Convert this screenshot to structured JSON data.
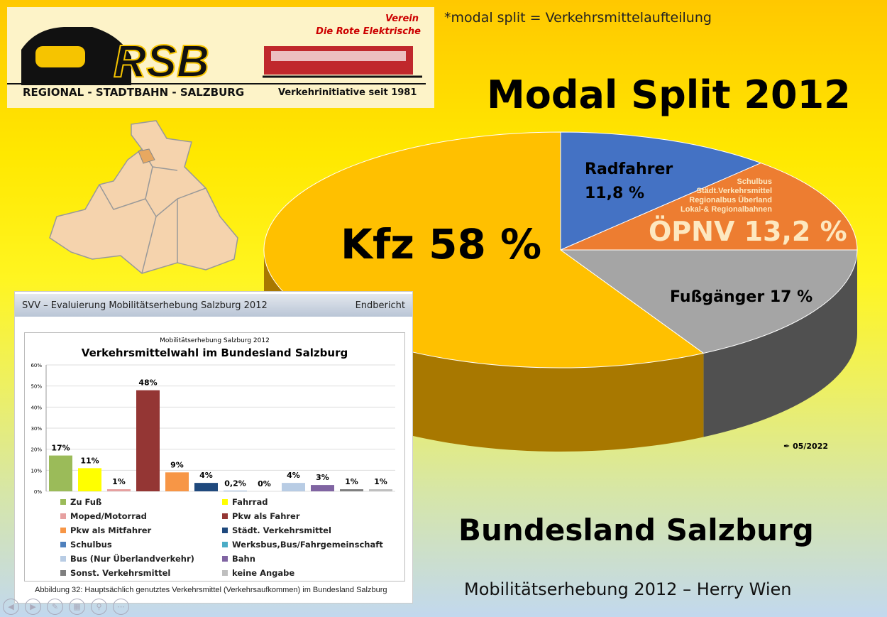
{
  "logo": {
    "brand": "RSB",
    "verein": "Verein",
    "name": "Die Rote Elektrische",
    "subtitle": "REGIONAL - STADTBAHN - SALZBURG",
    "tagline": "Verkehrinitiative seit 1981"
  },
  "note": "*modal split = Verkehrsmittelaufteilung",
  "title": "Modal Split 2012",
  "footer": {
    "region": "Bundesland Salzburg",
    "source": "Mobilitätserhebung 2012 – Herry Wien",
    "date": "05/2022"
  },
  "chart_data": [
    {
      "type": "pie",
      "title": "Modal Split 2012",
      "slices": [
        {
          "label": "Radfahrer",
          "value_label": "11,8 %",
          "value": 11.8,
          "color": "#4472c4"
        },
        {
          "label": "ÖPNV",
          "value_label": "ÖPNV 13,2 %",
          "value": 13.2,
          "color": "#ed7d31",
          "details": [
            "Schulbus",
            "Städt.Verkehrsmittel",
            "Regionalbus Überland",
            "Lokal-& Regionalbahnen"
          ]
        },
        {
          "label": "Fußgänger",
          "value_label": "Fußgänger 17 %",
          "value": 17,
          "color": "#a5a5a5"
        },
        {
          "label": "Kfz",
          "value_label": "Kfz 58 %",
          "value": 58,
          "color": "#ffc000"
        }
      ]
    },
    {
      "type": "bar",
      "supertitle": "Mobilitätserhebung Salzburg 2012",
      "title": "Verkehrsmittelwahl im Bundesland Salzburg",
      "ylim": [
        0,
        60
      ],
      "yticks": [
        "0%",
        "10%",
        "20%",
        "30%",
        "40%",
        "50%",
        "60%"
      ],
      "grid": true,
      "legend": "bottom",
      "categories": [
        "Zu Fuß",
        "Fahrrad",
        "Moped/Motorrad",
        "Pkw als Fahrer",
        "Pkw als Mitfahrer",
        "Städt. Verkehrsmittel",
        "Schulbus",
        "Werksbus,Bus/Fahrgemeinschaft",
        "Bus (Nur Überlandverkehr)",
        "Bahn",
        "Sonst. Verkehrsmittel",
        "keine Angabe"
      ],
      "values": [
        17,
        11,
        1,
        48,
        9,
        4,
        0.2,
        0,
        4,
        3,
        1,
        1
      ],
      "data_labels": [
        "17%",
        "11%",
        "1%",
        "48%",
        "9%",
        "4%",
        "0,2%",
        "0%",
        "4%",
        "3%",
        "1%",
        "1%"
      ],
      "colors": [
        "#9bbb59",
        "#ffff00",
        "#e6a0a0",
        "#943634",
        "#f79646",
        "#1f497d",
        "#4f81bd",
        "#4bacc6",
        "#b8cce4",
        "#8064a2",
        "#7f7f7f",
        "#bfbfbf"
      ]
    }
  ],
  "panel": {
    "header": "SVV – Evaluierung Mobilitätserhebung Salzburg 2012",
    "header_right": "Endbericht",
    "caption": "Abbildung 32: Hauptsächlich genutztes Verkehrsmittel (Verkehrsaufkommen) im Bundesland Salzburg"
  },
  "nav": [
    "previous-icon",
    "next-icon",
    "pen-icon",
    "slides-icon",
    "zoom-icon",
    "more-icon"
  ]
}
